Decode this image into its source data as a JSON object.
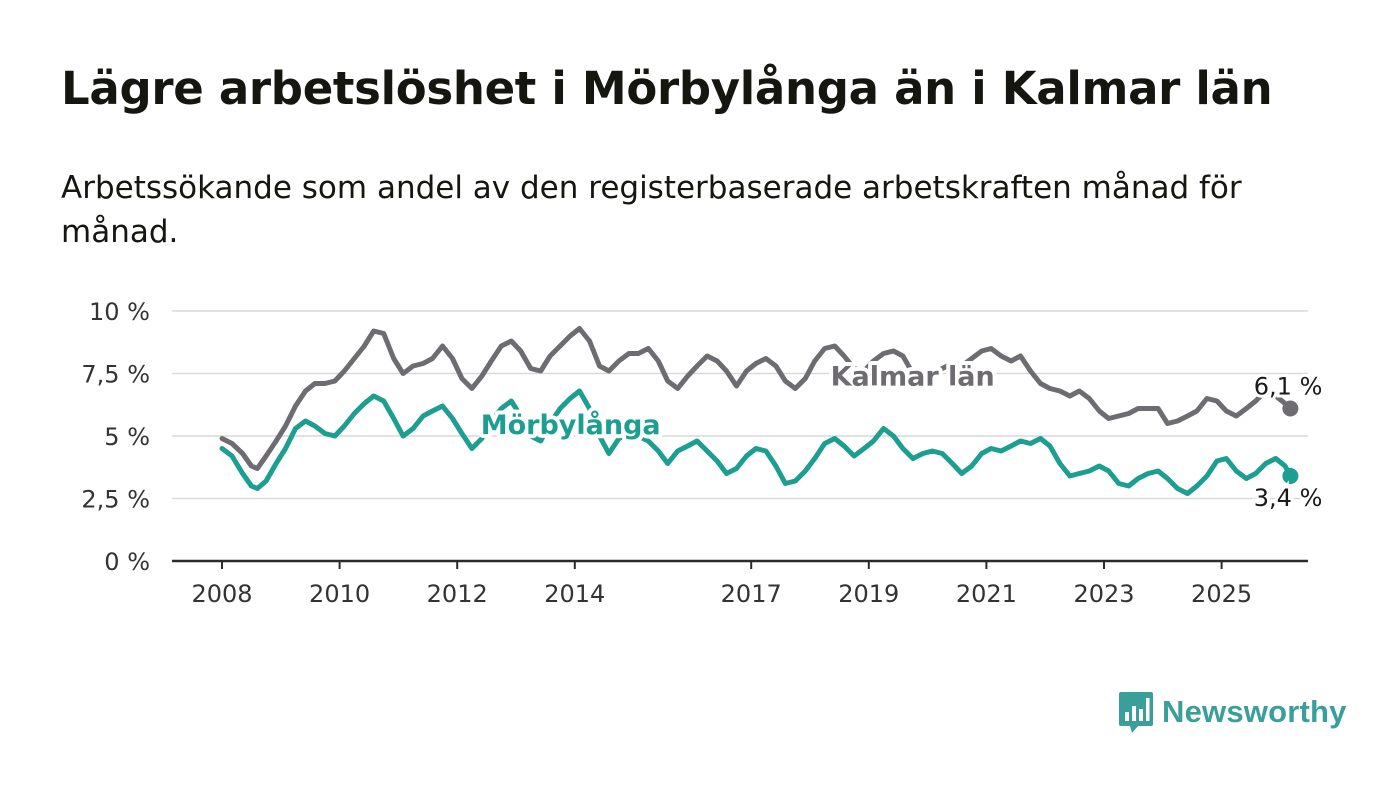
{
  "title": "Lägre arbetslöshet i Mörbylånga än i Kalmar län",
  "subtitle": "Arbetssökande som andel av den registerbaserade arbetskraften månad för månad.",
  "logo": {
    "text": "Newsworthy",
    "icon": "bar-chart-speech-bubble-icon",
    "color": "#3a9f9a"
  },
  "chart_data": {
    "type": "line",
    "title": "Lägre arbetslöshet i Mörbylånga än i Kalmar län",
    "subtitle": "Arbetssökande som andel av den registerbaserade arbetskraften månad för månad.",
    "xlabel": "",
    "ylabel": "",
    "ylim": [
      0,
      10
    ],
    "xlim": [
      2008.0,
      2025.7
    ],
    "y_ticks": [
      0,
      2.5,
      5,
      7.5,
      10
    ],
    "y_tick_labels": [
      "0 %",
      "2,5 %",
      "5 %",
      "7,5 %",
      "10 %"
    ],
    "x_ticks": [
      2008,
      2010,
      2012,
      2014,
      2017,
      2019,
      2021,
      2023,
      2025
    ],
    "x_tick_labels": [
      "2008",
      "2010",
      "2012",
      "2014",
      "2017",
      "2019",
      "2021",
      "2023",
      "2025"
    ],
    "grid": true,
    "legend": "direct labels on lines",
    "series": [
      {
        "name": "Kalmar län",
        "color": "#6e6c70",
        "end_label": "6,1 %",
        "points": [
          [
            2008.0,
            4.9
          ],
          [
            2008.17,
            4.7
          ],
          [
            2008.35,
            4.3
          ],
          [
            2008.5,
            3.8
          ],
          [
            2008.6,
            3.7
          ],
          [
            2008.75,
            4.2
          ],
          [
            2008.92,
            4.8
          ],
          [
            2009.08,
            5.4
          ],
          [
            2009.25,
            6.2
          ],
          [
            2009.42,
            6.8
          ],
          [
            2009.58,
            7.1
          ],
          [
            2009.75,
            7.1
          ],
          [
            2009.92,
            7.2
          ],
          [
            2010.08,
            7.6
          ],
          [
            2010.25,
            8.1
          ],
          [
            2010.42,
            8.6
          ],
          [
            2010.58,
            9.2
          ],
          [
            2010.75,
            9.1
          ],
          [
            2010.92,
            8.1
          ],
          [
            2011.08,
            7.5
          ],
          [
            2011.25,
            7.8
          ],
          [
            2011.42,
            7.9
          ],
          [
            2011.58,
            8.1
          ],
          [
            2011.75,
            8.6
          ],
          [
            2011.92,
            8.1
          ],
          [
            2012.08,
            7.3
          ],
          [
            2012.25,
            6.9
          ],
          [
            2012.42,
            7.4
          ],
          [
            2012.58,
            8.0
          ],
          [
            2012.75,
            8.6
          ],
          [
            2012.92,
            8.8
          ],
          [
            2013.08,
            8.4
          ],
          [
            2013.25,
            7.7
          ],
          [
            2013.42,
            7.6
          ],
          [
            2013.58,
            8.2
          ],
          [
            2013.75,
            8.6
          ],
          [
            2013.92,
            9.0
          ],
          [
            2014.08,
            9.3
          ],
          [
            2014.25,
            8.8
          ],
          [
            2014.42,
            7.8
          ],
          [
            2014.58,
            7.6
          ],
          [
            2014.75,
            8.0
          ],
          [
            2014.92,
            8.3
          ],
          [
            2015.08,
            8.3
          ],
          [
            2015.25,
            8.5
          ],
          [
            2015.42,
            8.0
          ],
          [
            2015.58,
            7.2
          ],
          [
            2015.75,
            6.9
          ],
          [
            2015.92,
            7.4
          ],
          [
            2016.08,
            7.8
          ],
          [
            2016.25,
            8.2
          ],
          [
            2016.42,
            8.0
          ],
          [
            2016.58,
            7.6
          ],
          [
            2016.75,
            7.0
          ],
          [
            2016.92,
            7.6
          ],
          [
            2017.08,
            7.9
          ],
          [
            2017.25,
            8.1
          ],
          [
            2017.42,
            7.8
          ],
          [
            2017.58,
            7.2
          ],
          [
            2017.75,
            6.9
          ],
          [
            2017.92,
            7.3
          ],
          [
            2018.08,
            8.0
          ],
          [
            2018.25,
            8.5
          ],
          [
            2018.42,
            8.6
          ],
          [
            2018.58,
            8.2
          ],
          [
            2018.75,
            7.7
          ],
          [
            2018.92,
            7.6
          ],
          [
            2019.08,
            8.0
          ],
          [
            2019.25,
            8.3
          ],
          [
            2019.42,
            8.4
          ],
          [
            2019.58,
            8.2
          ],
          [
            2019.75,
            7.5
          ],
          [
            2019.92,
            7.2
          ],
          [
            2020.08,
            7.4
          ],
          [
            2020.25,
            7.7
          ],
          [
            2020.42,
            7.9
          ],
          [
            2020.58,
            7.8
          ],
          [
            2020.75,
            8.1
          ],
          [
            2020.92,
            8.4
          ],
          [
            2021.08,
            8.5
          ],
          [
            2021.25,
            8.2
          ],
          [
            2021.42,
            8.0
          ],
          [
            2021.58,
            8.2
          ],
          [
            2021.75,
            7.6
          ],
          [
            2021.92,
            7.1
          ],
          [
            2022.08,
            6.9
          ],
          [
            2022.25,
            6.8
          ],
          [
            2022.42,
            6.6
          ],
          [
            2022.58,
            6.8
          ],
          [
            2022.75,
            6.5
          ],
          [
            2022.92,
            6.0
          ],
          [
            2023.08,
            5.7
          ],
          [
            2023.25,
            5.8
          ],
          [
            2023.42,
            5.9
          ],
          [
            2023.58,
            6.1
          ],
          [
            2023.75,
            6.1
          ],
          [
            2023.92,
            6.1
          ],
          [
            2024.08,
            5.5
          ],
          [
            2024.25,
            5.6
          ],
          [
            2024.42,
            5.8
          ],
          [
            2024.58,
            6.0
          ],
          [
            2024.75,
            6.5
          ],
          [
            2024.92,
            6.4
          ],
          [
            2025.08,
            6.0
          ],
          [
            2025.25,
            5.8
          ],
          [
            2025.42,
            6.1
          ],
          [
            2025.58,
            6.4
          ],
          [
            2025.75,
            6.8
          ],
          [
            2025.92,
            6.6
          ],
          [
            2026.08,
            6.3
          ],
          [
            2026.17,
            6.1
          ]
        ]
      },
      {
        "name": "Mörbylånga",
        "color": "#1c9e90",
        "end_label": "3,4 %",
        "points": [
          [
            2008.0,
            4.5
          ],
          [
            2008.17,
            4.2
          ],
          [
            2008.35,
            3.5
          ],
          [
            2008.5,
            3.0
          ],
          [
            2008.6,
            2.9
          ],
          [
            2008.75,
            3.2
          ],
          [
            2008.92,
            3.9
          ],
          [
            2009.08,
            4.5
          ],
          [
            2009.25,
            5.3
          ],
          [
            2009.42,
            5.6
          ],
          [
            2009.58,
            5.4
          ],
          [
            2009.75,
            5.1
          ],
          [
            2009.92,
            5.0
          ],
          [
            2010.08,
            5.4
          ],
          [
            2010.25,
            5.9
          ],
          [
            2010.42,
            6.3
          ],
          [
            2010.58,
            6.6
          ],
          [
            2010.75,
            6.4
          ],
          [
            2010.92,
            5.7
          ],
          [
            2011.08,
            5.0
          ],
          [
            2011.25,
            5.3
          ],
          [
            2011.42,
            5.8
          ],
          [
            2011.58,
            6.0
          ],
          [
            2011.75,
            6.2
          ],
          [
            2011.92,
            5.7
          ],
          [
            2012.08,
            5.1
          ],
          [
            2012.25,
            4.5
          ],
          [
            2012.42,
            4.9
          ],
          [
            2012.58,
            5.6
          ],
          [
            2012.75,
            6.1
          ],
          [
            2012.92,
            6.4
          ],
          [
            2013.08,
            5.8
          ],
          [
            2013.25,
            5.0
          ],
          [
            2013.42,
            4.8
          ],
          [
            2013.58,
            5.5
          ],
          [
            2013.75,
            6.1
          ],
          [
            2013.92,
            6.5
          ],
          [
            2014.08,
            6.8
          ],
          [
            2014.25,
            6.1
          ],
          [
            2014.42,
            5.0
          ],
          [
            2014.58,
            4.3
          ],
          [
            2014.75,
            4.9
          ],
          [
            2014.92,
            5.1
          ],
          [
            2015.08,
            5.0
          ],
          [
            2015.25,
            4.8
          ],
          [
            2015.42,
            4.4
          ],
          [
            2015.58,
            3.9
          ],
          [
            2015.75,
            4.4
          ],
          [
            2015.92,
            4.6
          ],
          [
            2016.08,
            4.8
          ],
          [
            2016.25,
            4.4
          ],
          [
            2016.42,
            4.0
          ],
          [
            2016.58,
            3.5
          ],
          [
            2016.75,
            3.7
          ],
          [
            2016.92,
            4.2
          ],
          [
            2017.08,
            4.5
          ],
          [
            2017.25,
            4.4
          ],
          [
            2017.42,
            3.8
          ],
          [
            2017.58,
            3.1
          ],
          [
            2017.75,
            3.2
          ],
          [
            2017.92,
            3.6
          ],
          [
            2018.08,
            4.1
          ],
          [
            2018.25,
            4.7
          ],
          [
            2018.42,
            4.9
          ],
          [
            2018.58,
            4.6
          ],
          [
            2018.75,
            4.2
          ],
          [
            2018.92,
            4.5
          ],
          [
            2019.08,
            4.8
          ],
          [
            2019.25,
            5.3
          ],
          [
            2019.42,
            5.0
          ],
          [
            2019.58,
            4.5
          ],
          [
            2019.75,
            4.1
          ],
          [
            2019.92,
            4.3
          ],
          [
            2020.08,
            4.4
          ],
          [
            2020.25,
            4.3
          ],
          [
            2020.42,
            3.9
          ],
          [
            2020.58,
            3.5
          ],
          [
            2020.75,
            3.8
          ],
          [
            2020.92,
            4.3
          ],
          [
            2021.08,
            4.5
          ],
          [
            2021.25,
            4.4
          ],
          [
            2021.42,
            4.6
          ],
          [
            2021.58,
            4.8
          ],
          [
            2021.75,
            4.7
          ],
          [
            2021.92,
            4.9
          ],
          [
            2022.08,
            4.6
          ],
          [
            2022.25,
            3.9
          ],
          [
            2022.42,
            3.4
          ],
          [
            2022.58,
            3.5
          ],
          [
            2022.75,
            3.6
          ],
          [
            2022.92,
            3.8
          ],
          [
            2023.08,
            3.6
          ],
          [
            2023.25,
            3.1
          ],
          [
            2023.42,
            3.0
          ],
          [
            2023.58,
            3.3
          ],
          [
            2023.75,
            3.5
          ],
          [
            2023.92,
            3.6
          ],
          [
            2024.08,
            3.3
          ],
          [
            2024.25,
            2.9
          ],
          [
            2024.42,
            2.7
          ],
          [
            2024.58,
            3.0
          ],
          [
            2024.75,
            3.4
          ],
          [
            2024.92,
            4.0
          ],
          [
            2025.08,
            4.1
          ],
          [
            2025.25,
            3.6
          ],
          [
            2025.42,
            3.3
          ],
          [
            2025.58,
            3.5
          ],
          [
            2025.75,
            3.9
          ],
          [
            2025.92,
            4.1
          ],
          [
            2026.08,
            3.8
          ],
          [
            2026.17,
            3.4
          ]
        ]
      }
    ]
  }
}
